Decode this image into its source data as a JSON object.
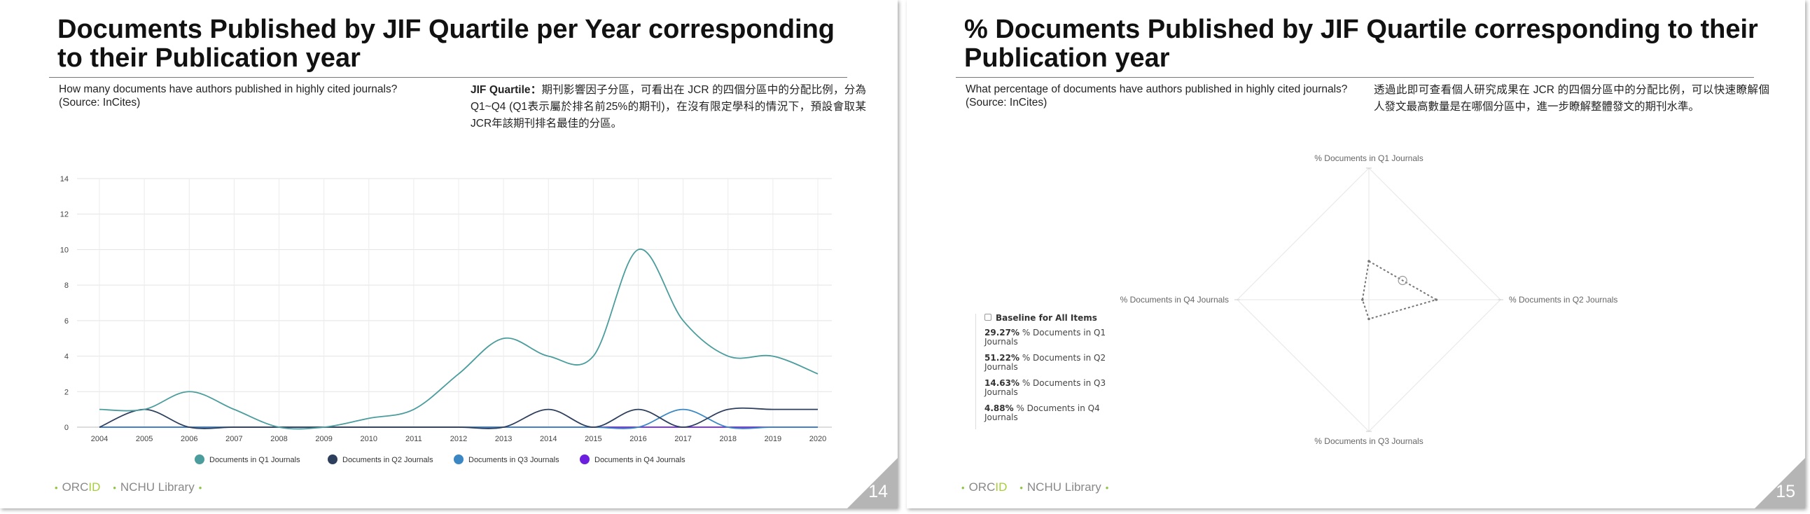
{
  "slides": [
    {
      "title": "Documents Published by JIF Quartile per Year corresponding to their Publication year",
      "question": "How many documents have authors published in highly cited journals?",
      "source": "(Source: InCites)",
      "note_label": "JIF Quartile：",
      "note_text": "期刊影響因子分區，可看出在 JCR 的四個分區中的分配比例，分為Q1~Q4 (Q1表示屬於排名前25%的期刊)，在沒有限定學科的情況下，預設會取某JCR年該期刊排名最佳的分區。",
      "footer": {
        "orc": "ORC",
        "id": "ID",
        "library": "NCHU Library"
      },
      "page_number": "14"
    },
    {
      "title": "% Documents Published by JIF Quartile corresponding to their Publication year",
      "question": "What percentage of documents have authors published in highly cited journals?",
      "source": "(Source: InCites)",
      "note_text": "透過此即可查看個人研究成果在 JCR 的四個分區中的分配比例，可以快速瞭解個人發文最高數量是在哪個分區中，進一步瞭解整體發文的期刊水準。",
      "footer": {
        "orc": "ORC",
        "id": "ID",
        "library": "NCHU Library"
      },
      "page_number": "15"
    }
  ],
  "chart_data": [
    {
      "type": "line",
      "x": [
        "2004",
        "2005",
        "2006",
        "2007",
        "2008",
        "2009",
        "2010",
        "2011",
        "2012",
        "2013",
        "2014",
        "2015",
        "2016",
        "2017",
        "2018",
        "2019",
        "2020"
      ],
      "series": [
        {
          "name": "Documents in Q1 Journals",
          "color": "#4a9d9c",
          "values": [
            1,
            1,
            2,
            1,
            0,
            0,
            0.5,
            1,
            3,
            5,
            4,
            4,
            10,
            6,
            4,
            4,
            3
          ]
        },
        {
          "name": "Documents in Q2 Journals",
          "color": "#2e3f5e",
          "values": [
            0,
            1,
            0,
            0,
            0,
            0,
            0,
            0,
            0,
            0,
            1,
            0,
            1,
            0,
            1,
            1,
            1
          ]
        },
        {
          "name": "Documents in Q3 Journals",
          "color": "#3a87c3",
          "values": [
            0,
            0,
            0,
            0,
            0,
            0,
            0,
            0,
            0,
            0,
            0,
            0,
            0,
            1,
            0,
            0,
            0
          ]
        },
        {
          "name": "Documents in Q4 Journals",
          "color": "#6d1fe0",
          "values": [
            0,
            0,
            0,
            0,
            0,
            0,
            0,
            0,
            0,
            0,
            0,
            0,
            0,
            0,
            0,
            0,
            0
          ]
        }
      ],
      "y_ticks": [
        0,
        2,
        4,
        6,
        8,
        10,
        12,
        14
      ],
      "ylim": [
        0,
        14
      ],
      "grid": true,
      "legend_position": "bottom"
    },
    {
      "type": "radar",
      "axes": [
        "% Documents in Q1 Journals",
        "% Documents in Q2 Journals",
        "% Documents in Q3 Journals",
        "% Documents in Q4 Journals"
      ],
      "series": [
        {
          "name": "Baseline for All Items",
          "color": "#777777",
          "values": [
            29.27,
            51.22,
            14.63,
            4.88
          ]
        }
      ],
      "rmax": 100,
      "legend": {
        "title": "Baseline for All Items",
        "items": [
          {
            "value": "29.27%",
            "label": "% Documents in Q1 Journals"
          },
          {
            "value": "51.22%",
            "label": "% Documents in Q2 Journals"
          },
          {
            "value": "14.63%",
            "label": "% Documents in Q3 Journals"
          },
          {
            "value": "4.88%",
            "label": "% Documents in Q4 Journals"
          }
        ]
      },
      "legend_position": "left"
    }
  ]
}
